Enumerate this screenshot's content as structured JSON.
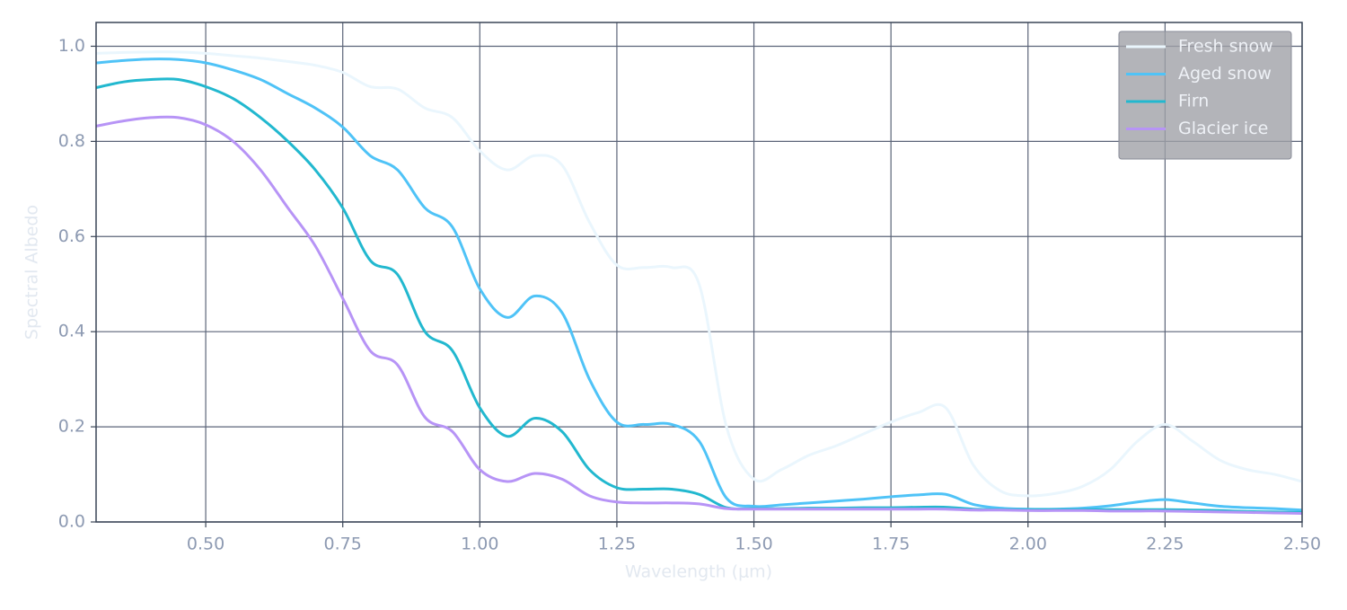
{
  "chart_data": {
    "type": "line",
    "xlabel": "Wavelength (μm)",
    "ylabel": "Spectral Albedo",
    "x": [
      0.3,
      0.35,
      0.4,
      0.45,
      0.5,
      0.55,
      0.6,
      0.65,
      0.7,
      0.75,
      0.8,
      0.85,
      0.9,
      0.95,
      1.0,
      1.05,
      1.1,
      1.15,
      1.2,
      1.25,
      1.3,
      1.35,
      1.4,
      1.45,
      1.5,
      1.55,
      1.6,
      1.65,
      1.7,
      1.75,
      1.8,
      1.85,
      1.9,
      1.95,
      2.0,
      2.05,
      2.1,
      2.15,
      2.2,
      2.25,
      2.3,
      2.35,
      2.4,
      2.45,
      2.5
    ],
    "series": [
      {
        "name": "Fresh snow",
        "color": "#eaf6fd",
        "values": [
          0.985,
          0.987,
          0.988,
          0.988,
          0.985,
          0.98,
          0.975,
          0.968,
          0.96,
          0.945,
          0.915,
          0.91,
          0.87,
          0.85,
          0.78,
          0.74,
          0.77,
          0.75,
          0.63,
          0.54,
          0.535,
          0.535,
          0.5,
          0.2,
          0.09,
          0.11,
          0.14,
          0.16,
          0.185,
          0.21,
          0.23,
          0.24,
          0.12,
          0.065,
          0.055,
          0.06,
          0.075,
          0.11,
          0.17,
          0.205,
          0.17,
          0.13,
          0.11,
          0.1,
          0.085
        ]
      },
      {
        "name": "Aged snow",
        "color": "#4fc3f7",
        "values": [
          0.965,
          0.97,
          0.973,
          0.972,
          0.965,
          0.95,
          0.93,
          0.9,
          0.87,
          0.83,
          0.77,
          0.74,
          0.66,
          0.62,
          0.49,
          0.43,
          0.475,
          0.44,
          0.3,
          0.21,
          0.205,
          0.205,
          0.17,
          0.05,
          0.033,
          0.036,
          0.04,
          0.044,
          0.048,
          0.053,
          0.057,
          0.058,
          0.037,
          0.029,
          0.027,
          0.027,
          0.029,
          0.034,
          0.042,
          0.047,
          0.04,
          0.033,
          0.03,
          0.028,
          0.025
        ]
      },
      {
        "name": "Firn",
        "color": "#22b8cf",
        "values": [
          0.913,
          0.925,
          0.93,
          0.93,
          0.915,
          0.89,
          0.85,
          0.8,
          0.74,
          0.66,
          0.55,
          0.52,
          0.4,
          0.36,
          0.24,
          0.18,
          0.218,
          0.19,
          0.11,
          0.072,
          0.069,
          0.069,
          0.058,
          0.03,
          0.028,
          0.028,
          0.029,
          0.029,
          0.03,
          0.03,
          0.031,
          0.031,
          0.027,
          0.026,
          0.026,
          0.026,
          0.026,
          0.026,
          0.026,
          0.026,
          0.025,
          0.024,
          0.022,
          0.021,
          0.02
        ]
      },
      {
        "name": "Glacier ice",
        "color": "#b794f6",
        "values": [
          0.832,
          0.843,
          0.85,
          0.85,
          0.835,
          0.8,
          0.74,
          0.66,
          0.58,
          0.47,
          0.36,
          0.33,
          0.22,
          0.19,
          0.11,
          0.085,
          0.102,
          0.09,
          0.055,
          0.042,
          0.04,
          0.04,
          0.038,
          0.028,
          0.027,
          0.027,
          0.027,
          0.027,
          0.027,
          0.027,
          0.027,
          0.027,
          0.025,
          0.025,
          0.024,
          0.024,
          0.024,
          0.023,
          0.023,
          0.023,
          0.022,
          0.021,
          0.02,
          0.019,
          0.018
        ]
      }
    ],
    "xlim": [
      0.3,
      2.5
    ],
    "xticks": [
      {
        "value": 0.5,
        "label": "0.50"
      },
      0.75,
      {
        "value": 1.0,
        "label": "1.00"
      },
      1.25,
      {
        "value": 1.5,
        "label": "1.50"
      },
      1.75,
      {
        "value": 2.0,
        "label": "2.00"
      },
      2.25,
      {
        "value": 2.5,
        "label": "2.50"
      }
    ],
    "ylim": [
      0,
      1.05
    ],
    "yticks": [
      {
        "value": 0,
        "label": "0.0"
      },
      0.2,
      0.4,
      0.6,
      0.8,
      {
        "value": 1.0,
        "label": "1.0"
      }
    ],
    "grid": true,
    "legend": "upper right"
  }
}
